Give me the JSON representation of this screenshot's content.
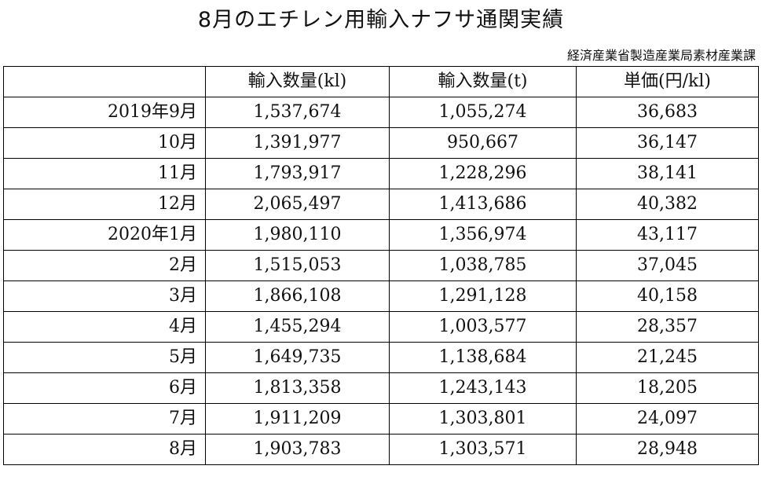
{
  "title": "8月のエチレン用輸入ナフサ通関実績",
  "source": "経済産業省製造産業局素材産業課",
  "table": {
    "headers": [
      "",
      "輸入数量(kl)",
      "輸入数量(t)",
      "単価(円/kl)"
    ],
    "rows": [
      {
        "period": "2019年9月",
        "volume_kl": "1,537,674",
        "volume_t": "1,055,274",
        "unit_price": "36,683"
      },
      {
        "period": "10月",
        "volume_kl": "1,391,977",
        "volume_t": "950,667",
        "unit_price": "36,147"
      },
      {
        "period": "11月",
        "volume_kl": "1,793,917",
        "volume_t": "1,228,296",
        "unit_price": "38,141"
      },
      {
        "period": "12月",
        "volume_kl": "2,065,497",
        "volume_t": "1,413,686",
        "unit_price": "40,382"
      },
      {
        "period": "2020年1月",
        "volume_kl": "1,980,110",
        "volume_t": "1,356,974",
        "unit_price": "43,117"
      },
      {
        "period": "2月",
        "volume_kl": "1,515,053",
        "volume_t": "1,038,785",
        "unit_price": "37,045"
      },
      {
        "period": "3月",
        "volume_kl": "1,866,108",
        "volume_t": "1,291,128",
        "unit_price": "40,158"
      },
      {
        "period": "4月",
        "volume_kl": "1,455,294",
        "volume_t": "1,003,577",
        "unit_price": "28,357"
      },
      {
        "period": "5月",
        "volume_kl": "1,649,735",
        "volume_t": "1,138,684",
        "unit_price": "21,245"
      },
      {
        "period": "6月",
        "volume_kl": "1,813,358",
        "volume_t": "1,243,143",
        "unit_price": "18,205"
      },
      {
        "period": "7月",
        "volume_kl": "1,911,209",
        "volume_t": "1,303,801",
        "unit_price": "24,097"
      },
      {
        "period": "8月",
        "volume_kl": "1,903,783",
        "volume_t": "1,303,571",
        "unit_price": "28,948"
      }
    ]
  }
}
